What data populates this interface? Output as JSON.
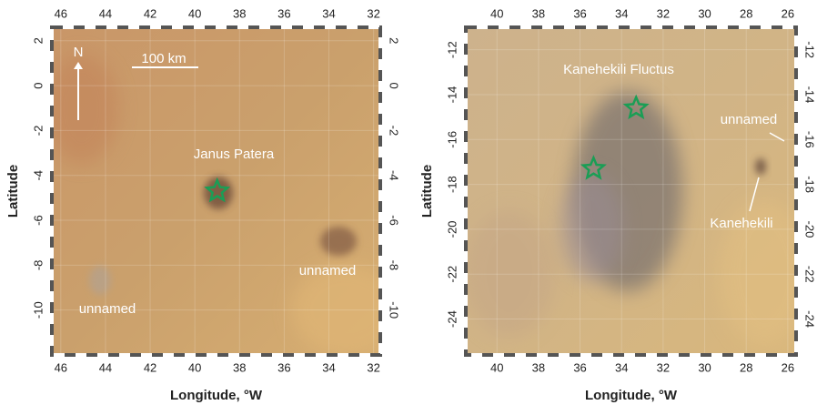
{
  "chart_data": [
    {
      "type": "scatter",
      "xlabel": "Longitude, °W",
      "ylabel": "Latitude",
      "xlim": [
        46.4,
        31.7
      ],
      "ylim": [
        -12,
        2.6
      ],
      "xticks": [
        46,
        44,
        42,
        40,
        38,
        36,
        34,
        32
      ],
      "yticks": [
        2,
        0,
        -2,
        -4,
        -6,
        -8,
        -10
      ],
      "points": {
        "x": [
          39.0
        ],
        "y": [
          -4.7
        ]
      },
      "marker_color": "#1a9e55",
      "annotations": [
        "N",
        "100 km",
        "Janus Patera",
        "unnamed",
        "unnamed"
      ]
    },
    {
      "type": "scatter",
      "xlabel": "Longitude, °W",
      "ylabel": "Latitude",
      "xlim": [
        41.5,
        25.6
      ],
      "ylim": [
        -25.6,
        -11.0
      ],
      "xticks": [
        40,
        38,
        36,
        34,
        32,
        30,
        28,
        26
      ],
      "yticks": [
        -12,
        -14,
        -16,
        -18,
        -20,
        -22,
        -24
      ],
      "points": {
        "x": [
          33.3,
          35.35
        ],
        "y": [
          -14.6,
          -17.3
        ]
      },
      "marker_color": "#1a9e55",
      "annotations": [
        "Kanehekili Fluctus",
        "unnamed",
        "Kanehekili"
      ]
    }
  ]
}
